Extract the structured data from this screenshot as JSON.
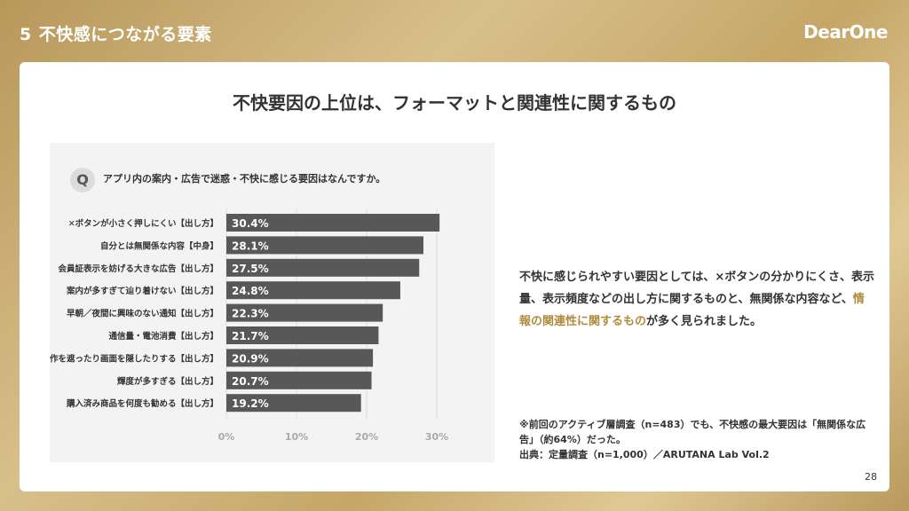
{
  "header": {
    "number": "5",
    "title": "不快感につながる要素",
    "logo": "DearOne"
  },
  "main": {
    "heading": "不快要因の上位は、フォーマットと関連性に関するもの",
    "question_badge": "Q",
    "question": "アプリ内の案内・広告で迷惑・不快に感じる要因はなんですか。",
    "body_before": "不快に感じられやすい要因としては、×ボタンの分かりにくさ、表示量、表示頻度などの出し方に関するものと、無関係な内容など、",
    "body_highlight": "情報の関連性に関するもの",
    "body_after": "が多く見られました。",
    "note": "※前回のアクティブ層調査（n=483）でも、不快感の最大要因は「無関係な広告」（約64%）だった。",
    "source": "出典：定量調査（n=1,000）／ARUTANA Lab Vol.2",
    "page_number": "28"
  },
  "colors": {
    "bar": "#585858",
    "highlight": "#b08a3c",
    "panel": "#f3f3f3"
  },
  "chart_data": {
    "type": "bar",
    "orientation": "horizontal",
    "categories": [
      "✕ボタンが小さく押しにくい【出し方】",
      "自分とは無関係な内容【中身】",
      "会員証表示を妨げる大きな広告【出し方】",
      "案内が多すぎて辿り着けない【出し方】",
      "早朝／夜間に興味のない通知【出し方】",
      "通信量・電池消費【出し方】",
      "操作を遮ったり画面を隠したりする【出し方】",
      "輝度が多すぎる【出し方】",
      "購入済み商品を何度も勧める【出し方】"
    ],
    "values": [
      30.4,
      28.1,
      27.5,
      24.8,
      22.3,
      21.7,
      20.9,
      20.7,
      19.2
    ],
    "value_labels": [
      "30.4%",
      "28.1%",
      "27.5%",
      "24.8%",
      "22.3%",
      "21.7%",
      "20.9%",
      "20.7%",
      "19.2%"
    ],
    "xlim": [
      0,
      35
    ],
    "xticks": [
      0,
      10,
      20,
      30
    ],
    "xtick_labels": [
      "0%",
      "10%",
      "20%",
      "30%"
    ],
    "grid": true
  }
}
